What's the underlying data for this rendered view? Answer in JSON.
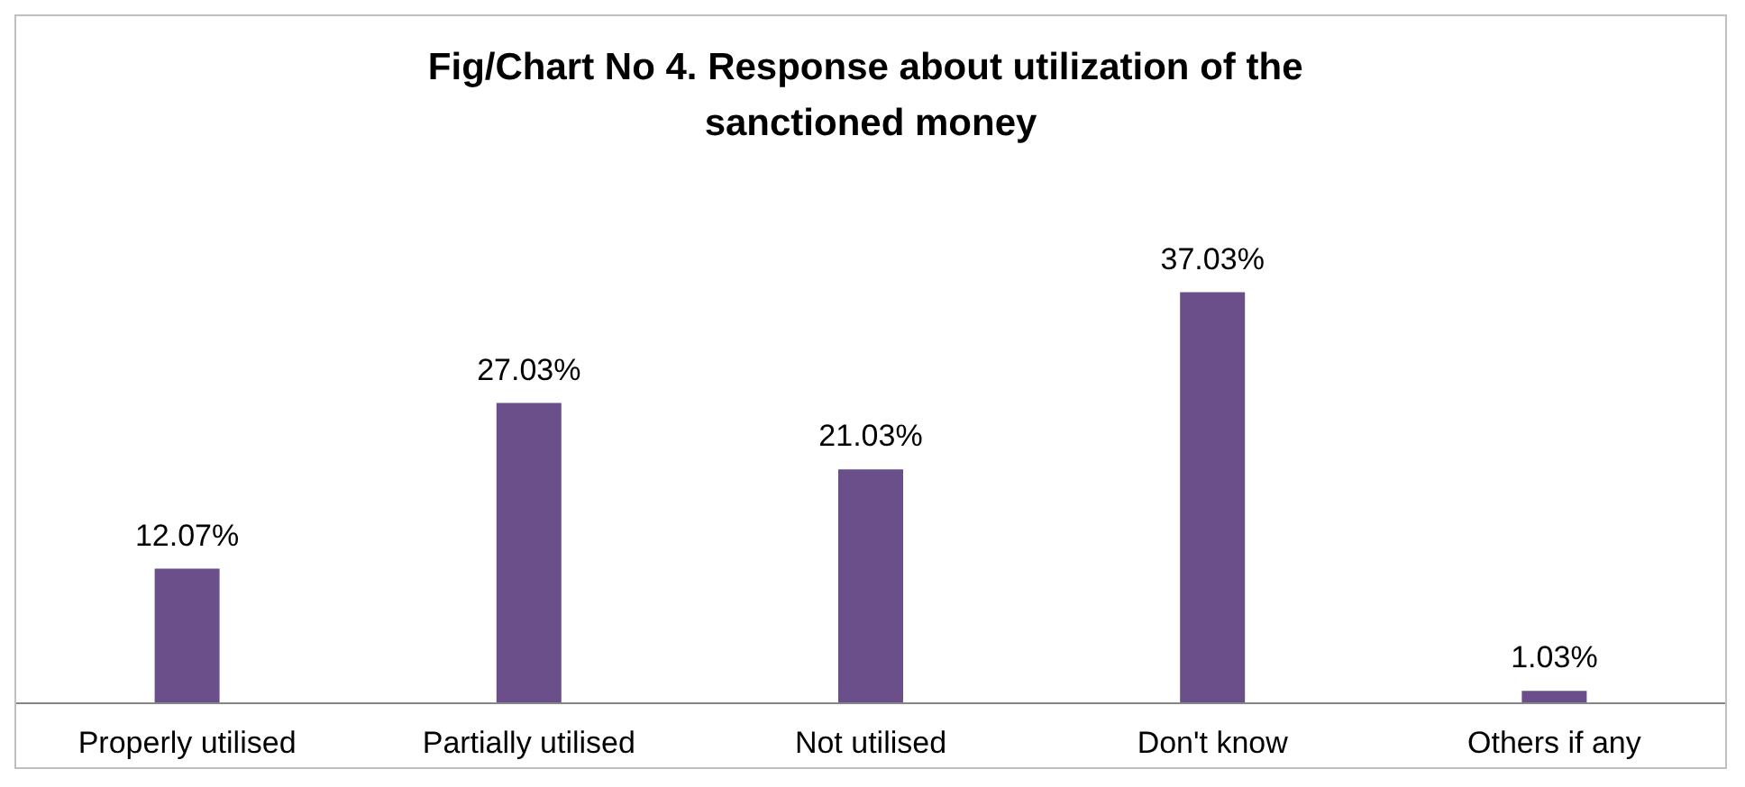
{
  "chart_data": {
    "type": "bar",
    "title": "Fig/Chart No 4. Response about utilization of the sanctioned money",
    "categories": [
      "Properly utilised",
      "Partially utilised",
      "Not utilised",
      "Don't know",
      "Others if any"
    ],
    "values": [
      12.07,
      27.03,
      21.03,
      37.03,
      1.03
    ],
    "value_labels": [
      "12.07%",
      "27.03%",
      "21.03%",
      "37.03%",
      "1.03%"
    ],
    "color": "#6a4f8a"
  }
}
